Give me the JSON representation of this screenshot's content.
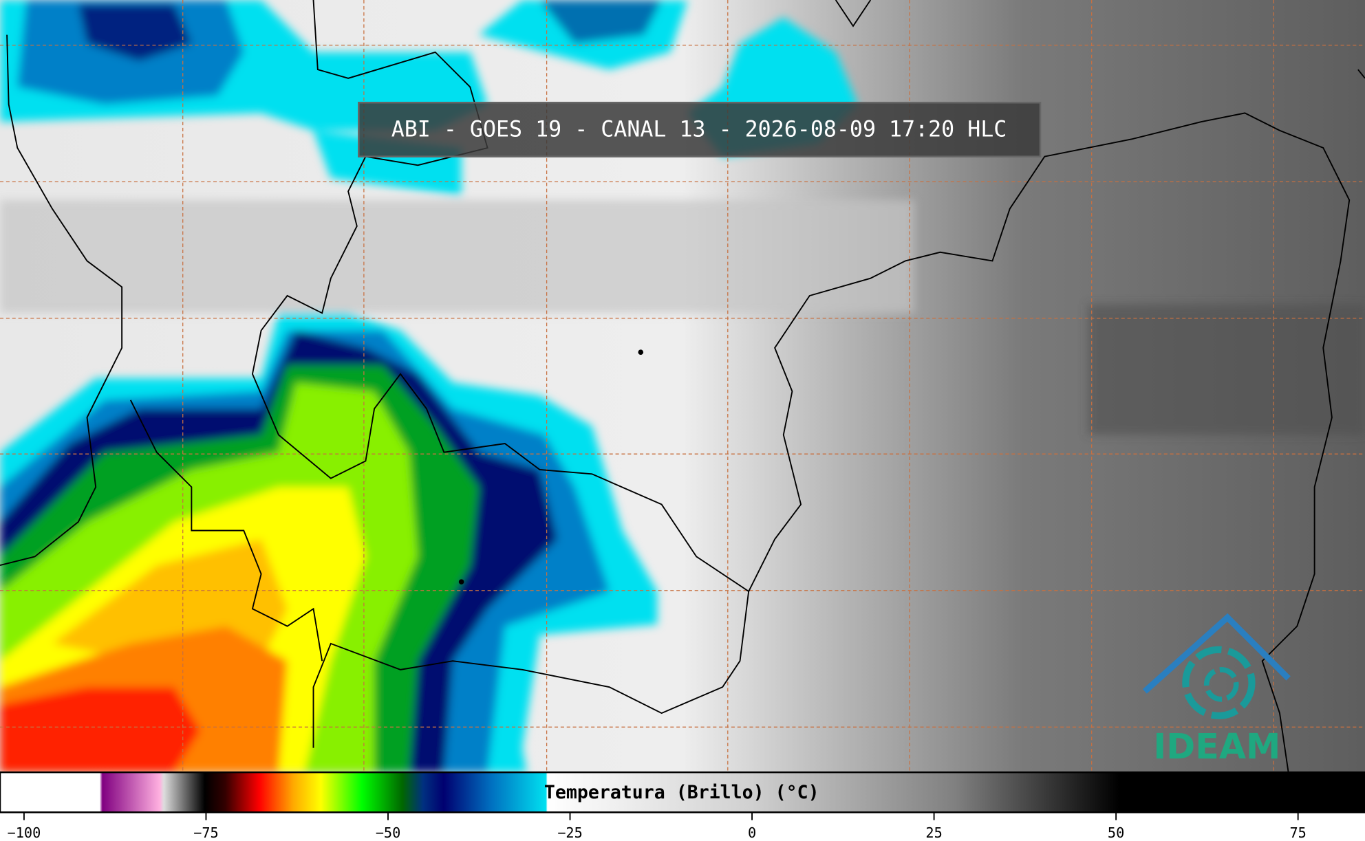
{
  "title": "ABI - GOES 19 - CANAL 13 - 2026-08-09 17:20 HLC",
  "colorbar": {
    "label": "Temperatura (Brillo) (°C)",
    "range": [
      -103.3,
      84.2
    ],
    "ticks": [
      {
        "value": -100,
        "label": "−100"
      },
      {
        "value": -75,
        "label": "−75"
      },
      {
        "value": -50,
        "label": "−50"
      },
      {
        "value": -25,
        "label": "−25"
      },
      0,
      25,
      50,
      75
    ]
  },
  "logo": {
    "text": "IDEAM"
  }
}
